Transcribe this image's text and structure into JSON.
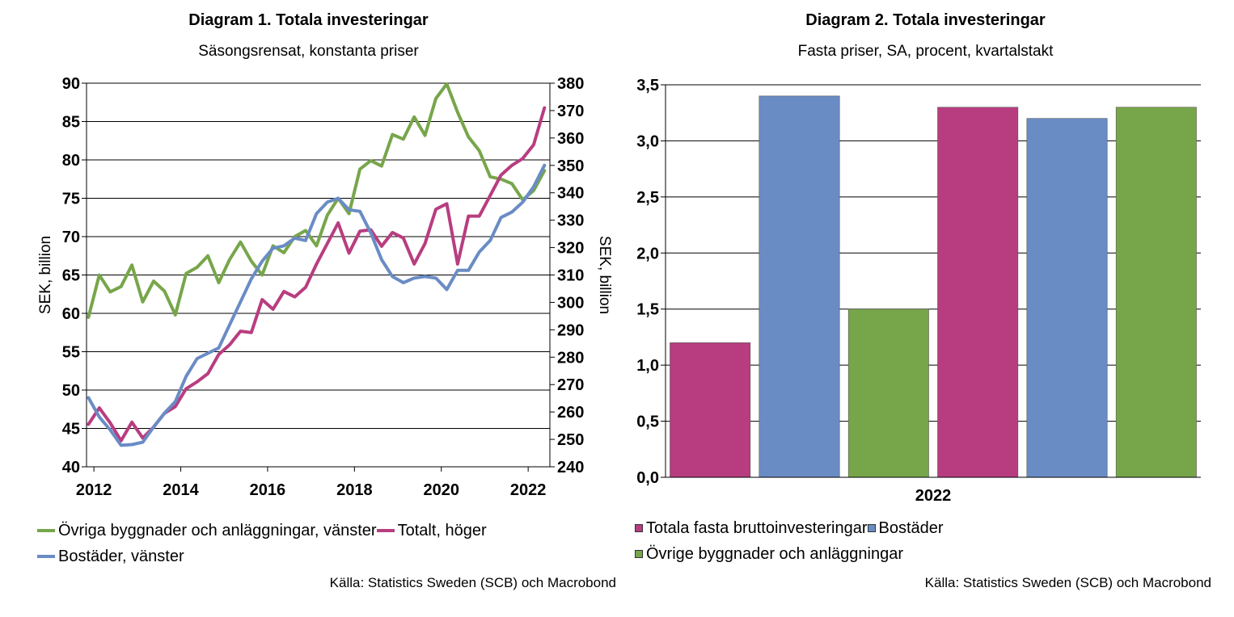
{
  "chart_data": [
    {
      "type": "line",
      "title": "Diagram 1. Totala investeringar",
      "subtitle": "Säsongsrensat, konstanta priser",
      "ylabel_left": "SEK, billion",
      "ylabel_right": "SEK, billion",
      "ylim_left": [
        40,
        90
      ],
      "ylim_right": [
        240,
        380
      ],
      "xlim": [
        2011.83,
        2022.5
      ],
      "x_ticks": [
        2012,
        2014,
        2016,
        2018,
        2020,
        2022
      ],
      "y_ticks_left": [
        40,
        45,
        50,
        55,
        60,
        65,
        70,
        75,
        80,
        85,
        90
      ],
      "y_ticks_right": [
        240,
        250,
        260,
        270,
        280,
        290,
        300,
        310,
        320,
        330,
        340,
        350,
        360,
        370,
        380
      ],
      "x_tick_labels": [
        "2012",
        "2014",
        "2016",
        "2018",
        "2020",
        "2022"
      ],
      "y_tick_labels_left": [
        "40",
        "45",
        "50",
        "55",
        "60",
        "65",
        "70",
        "75",
        "80",
        "85",
        "90"
      ],
      "y_tick_labels_right": [
        "240",
        "250",
        "260",
        "270",
        "280",
        "290",
        "300",
        "310",
        "320",
        "330",
        "340",
        "350",
        "360",
        "370",
        "380"
      ],
      "grid": true,
      "legend": "bottom",
      "series": [
        {
          "name": "Övriga byggnader och anläggningar, vänster",
          "axis": "left",
          "color": "#77a64a",
          "x": [
            2011.875,
            2012.125,
            2012.375,
            2012.625,
            2012.875,
            2013.125,
            2013.375,
            2013.625,
            2013.875,
            2014.125,
            2014.375,
            2014.625,
            2014.875,
            2015.125,
            2015.375,
            2015.625,
            2015.875,
            2016.125,
            2016.375,
            2016.625,
            2016.875,
            2017.125,
            2017.375,
            2017.625,
            2017.875,
            2018.125,
            2018.375,
            2018.625,
            2018.875,
            2019.125,
            2019.375,
            2019.625,
            2019.875,
            2020.125,
            2020.375,
            2020.625,
            2020.875,
            2021.125,
            2021.375,
            2021.625,
            2021.875,
            2022.125,
            2022.375
          ],
          "y": [
            59.5,
            65.0,
            62.8,
            63.5,
            66.3,
            61.5,
            64.2,
            62.9,
            59.8,
            65.2,
            66.0,
            67.5,
            64.0,
            67.0,
            69.3,
            66.8,
            65.0,
            68.8,
            67.9,
            70.0,
            70.8,
            68.8,
            72.8,
            75.0,
            73.0,
            78.8,
            79.9,
            79.2,
            83.3,
            82.7,
            85.6,
            83.2,
            88.0,
            89.9,
            86.2,
            83.0,
            81.2,
            77.8,
            77.5,
            76.9,
            74.8,
            76.0,
            78.6
          ]
        },
        {
          "name": "Totalt, höger",
          "axis": "right",
          "color": "#b83d80",
          "x": [
            2011.875,
            2012.125,
            2012.375,
            2012.625,
            2012.875,
            2013.125,
            2013.375,
            2013.625,
            2013.875,
            2014.125,
            2014.375,
            2014.625,
            2014.875,
            2015.125,
            2015.375,
            2015.625,
            2015.875,
            2016.125,
            2016.375,
            2016.625,
            2016.875,
            2017.125,
            2017.375,
            2017.625,
            2017.875,
            2018.125,
            2018.375,
            2018.625,
            2018.875,
            2019.125,
            2019.375,
            2019.625,
            2019.875,
            2020.125,
            2020.375,
            2020.625,
            2020.875,
            2021.125,
            2021.375,
            2021.625,
            2021.875,
            2022.125,
            2022.375
          ],
          "y": [
            255.5,
            261.5,
            256.0,
            249.5,
            256.3,
            250.5,
            254.5,
            259.5,
            262.0,
            268.5,
            271.0,
            274.0,
            281.0,
            284.5,
            289.5,
            289.0,
            301.0,
            297.5,
            304.0,
            302.0,
            305.5,
            314.0,
            321.5,
            329.0,
            318.0,
            326.0,
            326.5,
            320.5,
            325.5,
            323.5,
            314.0,
            321.5,
            334.0,
            336.0,
            314.0,
            331.5,
            331.5,
            339.0,
            346.5,
            350.0,
            352.5,
            357.5,
            371.0
          ]
        },
        {
          "name": "Bostäder, vänster",
          "axis": "left",
          "color": "#6a8cc5",
          "x": [
            2011.875,
            2012.125,
            2012.375,
            2012.625,
            2012.875,
            2013.125,
            2013.375,
            2013.625,
            2013.875,
            2014.125,
            2014.375,
            2014.625,
            2014.875,
            2015.125,
            2015.375,
            2015.625,
            2015.875,
            2016.125,
            2016.375,
            2016.625,
            2016.875,
            2017.125,
            2017.375,
            2017.625,
            2017.875,
            2018.125,
            2018.375,
            2018.625,
            2018.875,
            2019.125,
            2019.375,
            2019.625,
            2019.875,
            2020.125,
            2020.375,
            2020.625,
            2020.875,
            2021.125,
            2021.375,
            2021.625,
            2021.875,
            2022.125,
            2022.375
          ],
          "y": [
            49.0,
            46.5,
            44.8,
            42.8,
            42.9,
            43.2,
            45.2,
            47.0,
            48.5,
            51.8,
            54.1,
            54.8,
            55.5,
            58.5,
            61.5,
            64.5,
            66.8,
            68.5,
            68.8,
            69.8,
            69.5,
            73.0,
            74.5,
            75.0,
            73.5,
            73.3,
            70.5,
            67.0,
            64.8,
            64.0,
            64.6,
            64.8,
            64.6,
            63.1,
            65.6,
            65.6,
            68.0,
            69.5,
            72.5,
            73.2,
            74.5,
            76.5,
            79.3
          ]
        }
      ],
      "source": "Källa: Statistics Sweden (SCB) och Macrobond"
    },
    {
      "type": "bar",
      "title": "Diagram 2. Totala investeringar",
      "subtitle": "Fasta priser, SA, procent, kvartalstakt",
      "categories": [
        "2022"
      ],
      "ylim": [
        0,
        3.5
      ],
      "y_ticks": [
        0,
        0.5,
        1.0,
        1.5,
        2.0,
        2.5,
        3.0,
        3.5
      ],
      "y_tick_labels": [
        "0,0",
        "0,5",
        "1,0",
        "1,5",
        "2,0",
        "2,5",
        "3,0",
        "3,5"
      ],
      "grid": true,
      "legend": "bottom",
      "bars": [
        {
          "series": "Totala fasta bruttoinvesteringar",
          "value": 1.2,
          "color": "#b83d80"
        },
        {
          "series": "Bostäder",
          "value": 3.4,
          "color": "#6a8cc5"
        },
        {
          "series": "Övrige byggnader och anläggningar",
          "value": 1.5,
          "color": "#77a64a"
        },
        {
          "series": "Totala fasta bruttoinvesteringar",
          "value": 3.3,
          "color": "#b83d80"
        },
        {
          "series": "Bostäder",
          "value": 3.2,
          "color": "#6a8cc5"
        },
        {
          "series": "Övrige byggnader och anläggningar",
          "value": 3.3,
          "color": "#77a64a"
        }
      ],
      "legend_entries": [
        {
          "name": "Totala fasta bruttoinvesteringar",
          "color": "#b83d80"
        },
        {
          "name": "Bostäder",
          "color": "#6a8cc5"
        },
        {
          "name": "Övrige byggnader och anläggningar",
          "color": "#77a64a"
        }
      ],
      "source": "Källa: Statistics Sweden (SCB) och Macrobond"
    }
  ]
}
